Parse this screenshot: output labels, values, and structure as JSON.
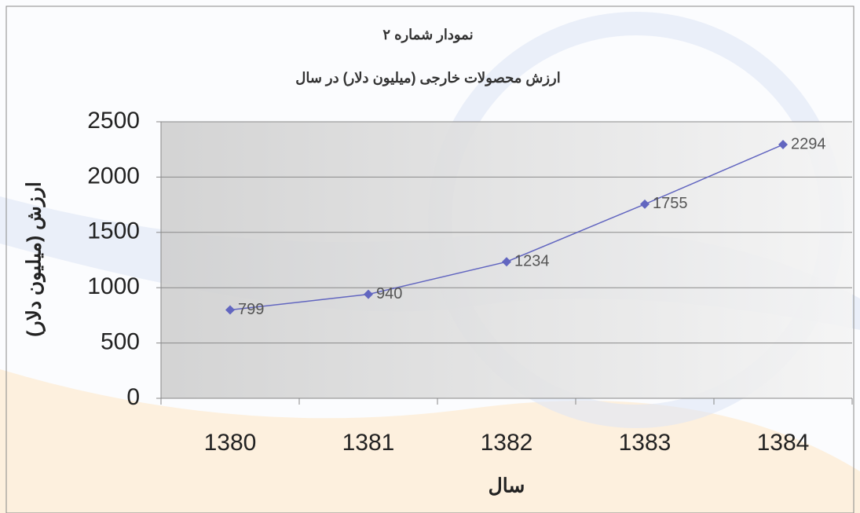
{
  "chart_data": {
    "type": "line",
    "title": "نمودار شماره ۲",
    "subtitle": "ارزش محصولات خارجی (میلیون دلار) در سال",
    "x_label": "سال",
    "y_label": "ارزش (میلیون دلار)",
    "categories": [
      "1380",
      "1381",
      "1382",
      "1383",
      "1384"
    ],
    "values": [
      799,
      940,
      1234,
      1755,
      2294
    ],
    "color": "#6266c0",
    "ylim": [
      0,
      2500
    ],
    "yticks": [
      0,
      500,
      1000,
      1500,
      2000,
      2500
    ],
    "grid": true
  }
}
